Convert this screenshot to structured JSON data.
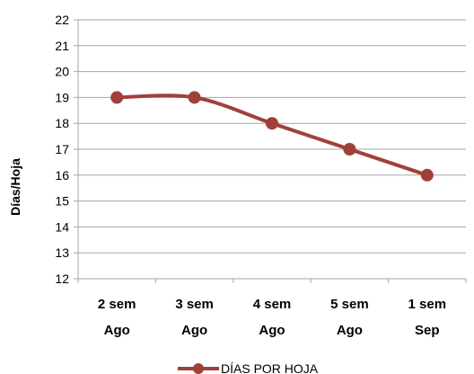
{
  "chart_data": {
    "type": "line",
    "categories": [
      [
        "2 sem",
        "Ago"
      ],
      [
        "3 sem",
        "Ago"
      ],
      [
        "4 sem",
        "Ago"
      ],
      [
        "5 sem",
        "Ago"
      ],
      [
        "1 sem",
        "Sep"
      ]
    ],
    "series": [
      {
        "name": "DÍAS POR HOJA",
        "values": [
          19,
          19,
          18,
          17,
          16
        ],
        "color": "#a0403a"
      }
    ],
    "ylabel": "Días/Hoja",
    "xlabel": "",
    "ylim": [
      12,
      22
    ],
    "yticks": [
      12,
      13,
      14,
      15,
      16,
      17,
      18,
      19,
      20,
      21,
      22
    ],
    "grid": true,
    "smooth": true,
    "legend": "bottom",
    "gridColor": "#a6a6a6"
  }
}
